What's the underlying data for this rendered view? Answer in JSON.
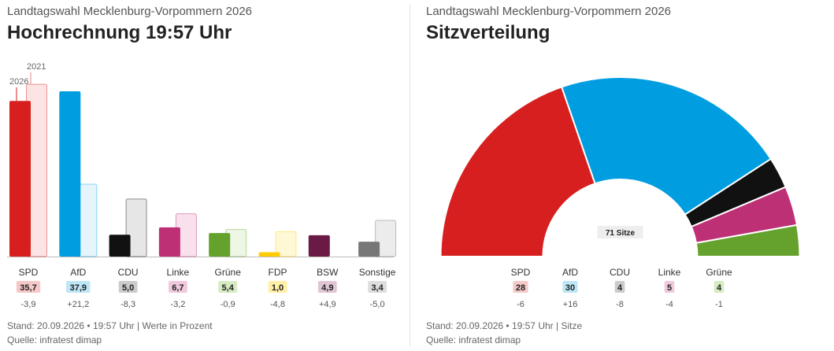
{
  "left": {
    "subtitle": "Landtagswahl Mecklenburg-Vorpommern 2026",
    "title": "Hochrechnung 19:57 Uhr",
    "footer_line1": "Stand: 20.09.2026 • 19:57 Uhr | Werte in Prozent",
    "footer_line2": "Quelle: infratest dimap"
  },
  "right": {
    "subtitle": "Landtagswahl Mecklenburg-Vorpommern 2026",
    "title": "Sitzverteilung",
    "footer_line1": "Stand: 20.09.2026 • 19:57 Uhr | Sitze",
    "footer_line2": "Quelle: infratest dimap"
  },
  "chart_data": [
    {
      "type": "bar",
      "title": "Hochrechnung 19:57 Uhr",
      "subtitle": "Landtagswahl Mecklenburg-Vorpommern 2026",
      "categories": [
        "SPD",
        "AfD",
        "CDU",
        "Linke",
        "Grüne",
        "FDP",
        "BSW",
        "Sonstige"
      ],
      "series": [
        {
          "name": "2026",
          "values": [
            35.7,
            37.9,
            5.0,
            6.7,
            5.4,
            1.0,
            4.9,
            3.4
          ]
        },
        {
          "name": "2021",
          "values": [
            39.6,
            16.7,
            13.3,
            9.9,
            6.3,
            5.8,
            0,
            8.4
          ]
        }
      ],
      "value_labels": [
        "35,7",
        "37,9",
        "5,0",
        "6,7",
        "5,4",
        "1,0",
        "4,9",
        "3,4"
      ],
      "diff_labels": [
        "-3,9",
        "+21,2",
        "-8,3",
        "-3,2",
        "-0,9",
        "-4,8",
        "+4,9",
        "-5,0"
      ],
      "colors": [
        "#d71f1f",
        "#009ee0",
        "#111111",
        "#be3075",
        "#64a12d",
        "#ffcc00",
        "#6a1a45",
        "#777777"
      ],
      "light_colors": [
        "#fde4e4",
        "#e6f5fc",
        "#e6e6e6",
        "#f8e1ec",
        "#eef6e6",
        "#fff8d6",
        "#f0e2ea",
        "#ececec"
      ],
      "badge_colors": [
        "#f6c9c9",
        "#bde7f7",
        "#cccccc",
        "#f1c9dc",
        "#d6ebc2",
        "#fff0a6",
        "#e0c6d4",
        "#dddddd"
      ],
      "ylim": [
        0,
        45
      ]
    },
    {
      "type": "pie",
      "variant": "half-donut",
      "title": "Sitzverteilung",
      "subtitle": "Landtagswahl Mecklenburg-Vorpommern 2026",
      "center_label": "71 Sitze",
      "categories": [
        "SPD",
        "AfD",
        "CDU",
        "Linke",
        "Grüne"
      ],
      "values": [
        28,
        30,
        4,
        5,
        4
      ],
      "value_labels": [
        "28",
        "30",
        "4",
        "5",
        "4"
      ],
      "diff_labels": [
        "-6",
        "+16",
        "-8",
        "-4",
        "-1"
      ],
      "colors": [
        "#d71f1f",
        "#009ee0",
        "#111111",
        "#be3075",
        "#64a12d"
      ],
      "badge_colors": [
        "#f6c9c9",
        "#bde7f7",
        "#cccccc",
        "#f1c9dc",
        "#d6ebc2"
      ]
    }
  ]
}
